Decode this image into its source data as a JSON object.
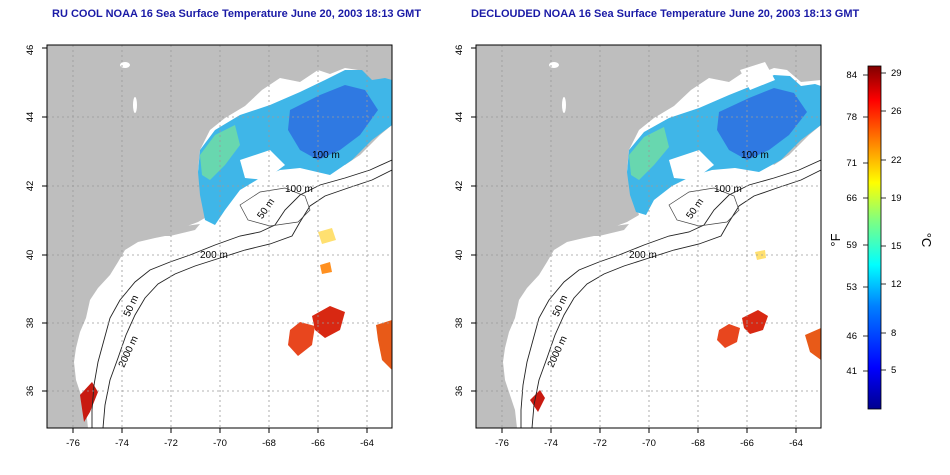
{
  "panels": [
    {
      "title": "RU COOL NOAA 16 Sea Surface Temperature June 20, 2003 18:13 GMT",
      "contour_labels": [
        "100 m",
        "100 m",
        "50 m",
        "200 m",
        "50 m",
        "2000 m"
      ]
    },
    {
      "title": "DECLOUDED NOAA 16 Sea Surface Temperature June 20, 2003 18:13 GMT",
      "contour_labels": [
        "100 m",
        "100 m",
        "50 m",
        "200 m",
        "50 m",
        "2000 m"
      ]
    }
  ],
  "axes": {
    "x_ticks": [
      "-76",
      "-74",
      "-72",
      "-70",
      "-68",
      "-66",
      "-64"
    ],
    "y_ticks": [
      "36",
      "38",
      "40",
      "42",
      "44",
      "46"
    ]
  },
  "colorbar": {
    "fahrenheit_label": "°F",
    "celsius_label": "°C",
    "fahrenheit_ticks": [
      "84",
      "78",
      "71",
      "66",
      "59",
      "53",
      "46",
      "41"
    ],
    "celsius_ticks": [
      "29",
      "26",
      "22",
      "19",
      "15",
      "12",
      "8",
      "5"
    ],
    "colors": [
      "#00008f",
      "#0000ff",
      "#0080ff",
      "#00ffff",
      "#80ff80",
      "#ffff00",
      "#ff8000",
      "#ff0000",
      "#800000"
    ]
  },
  "colors": {
    "land": "#bebebe",
    "ocean_bg": "#ffffff",
    "grid": "#9a9a9a",
    "title": "#1a1aa6"
  }
}
